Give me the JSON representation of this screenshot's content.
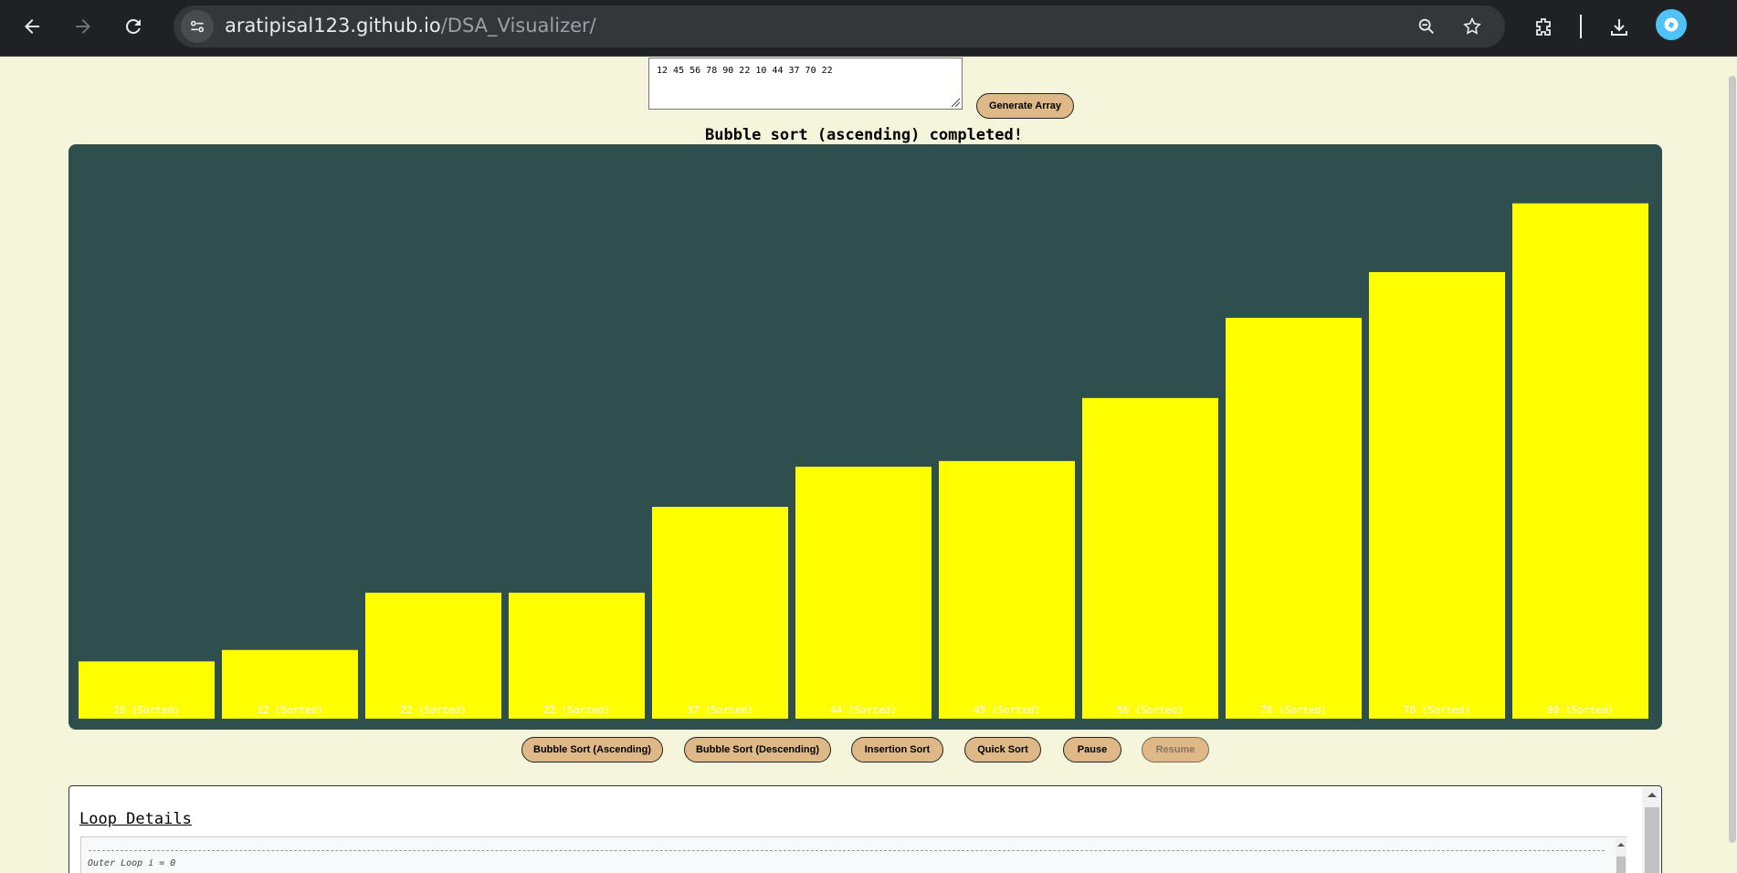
{
  "browser": {
    "url_host": "aratipisal123.github.io",
    "url_path": "/DSA_Visualizer/"
  },
  "input": {
    "value": "12 45 56 78 90 22 10 44 37 70 22"
  },
  "buttons": {
    "generate": "Generate Array",
    "bubble_asc": "Bubble Sort (Ascending)",
    "bubble_desc": "Bubble Sort (Descending)",
    "insertion": "Insertion Sort",
    "quick": "Quick Sort",
    "pause": "Pause",
    "resume": "Resume"
  },
  "status": "Bubble sort (ascending) completed!",
  "chart_data": {
    "type": "bar",
    "values": [
      10,
      12,
      22,
      22,
      37,
      44,
      45,
      56,
      70,
      78,
      90
    ],
    "labels": [
      "10 (Sorted)",
      "12 (Sorted)",
      "22 (Sorted)",
      "22 (Sorted)",
      "37 (Sorted)",
      "44 (Sorted)",
      "45 (Sorted)",
      "56 (Sorted)",
      "70 (Sorted)",
      "78 (Sorted)",
      "90 (Sorted)"
    ],
    "bar_color": "#ffff00",
    "background": "#2f4f4f",
    "label_color": "#ffffff"
  },
  "details": {
    "title": "Loop Details",
    "log_line": "Outer Loop i = 0"
  }
}
